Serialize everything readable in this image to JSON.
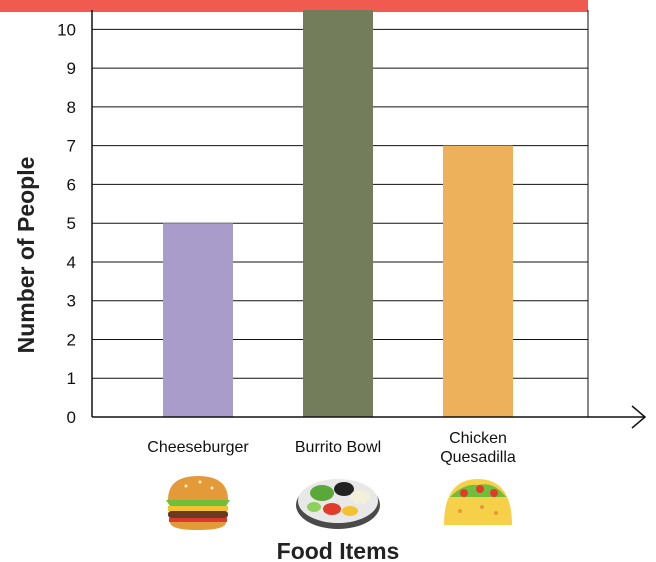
{
  "chart_data": {
    "type": "bar",
    "categories": [
      "Cheeseburger",
      "Burrito Bowl",
      "Chicken Quesadilla"
    ],
    "category_lines": [
      [
        "Cheeseburger"
      ],
      [
        "Burrito Bowl"
      ],
      [
        "Chicken",
        "Quesadilla"
      ]
    ],
    "values": [
      5,
      10.5,
      7
    ],
    "colors": [
      "#a99ccb",
      "#737d5c",
      "#eeb15b"
    ],
    "xlabel": "Food Items",
    "ylabel": "Number of People",
    "ylim": [
      0,
      10.5
    ],
    "yticks": [
      0,
      1,
      2,
      3,
      4,
      5,
      6,
      7,
      8,
      9,
      10
    ],
    "grid": true,
    "icons": [
      "burger-icon",
      "burrito-bowl-icon",
      "taco-icon"
    ]
  },
  "header_bar": {
    "color": "#f15a4f"
  }
}
